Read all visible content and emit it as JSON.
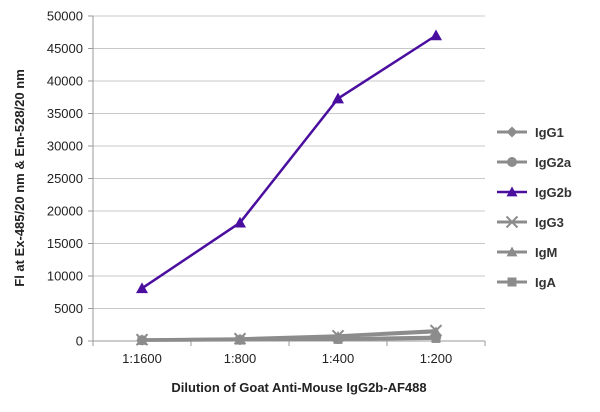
{
  "chart_data": {
    "type": "line",
    "title": "",
    "xlabel": "Dilution of Goat Anti-Mouse IgG2b-AF488",
    "ylabel": "Fl at Ex-485/20 nm & Em-528/20 nm",
    "ylim": [
      0,
      50000
    ],
    "yticks": [
      0,
      5000,
      10000,
      15000,
      20000,
      25000,
      30000,
      35000,
      40000,
      45000,
      50000
    ],
    "ytick_labels": [
      "0",
      "5000",
      "10000",
      "15000",
      "20000",
      "25000",
      "30000",
      "35000",
      "40000",
      "45000",
      "50000"
    ],
    "categories": [
      "1:1600",
      "1:800",
      "1:400",
      "1:200"
    ],
    "grid": "horizontal",
    "legend_position": "right",
    "series": [
      {
        "name": "IgG1",
        "marker": "diamond",
        "color": "#8c8c8c",
        "values": [
          150,
          220,
          350,
          600
        ]
      },
      {
        "name": "IgG2a",
        "marker": "circle",
        "color": "#8c8c8c",
        "values": [
          120,
          180,
          300,
          500
        ]
      },
      {
        "name": "IgG2b",
        "marker": "triangle",
        "color": "#4b0fa0",
        "values": [
          8100,
          18200,
          37300,
          47000
        ]
      },
      {
        "name": "IgG3",
        "marker": "x",
        "color": "#8c8c8c",
        "values": [
          200,
          350,
          800,
          1600
        ]
      },
      {
        "name": "IgM",
        "marker": "triangle",
        "color": "#8c8c8c",
        "values": [
          180,
          300,
          700,
          1400
        ]
      },
      {
        "name": "IgA",
        "marker": "square",
        "color": "#8c8c8c",
        "values": [
          100,
          150,
          250,
          400
        ]
      }
    ]
  }
}
